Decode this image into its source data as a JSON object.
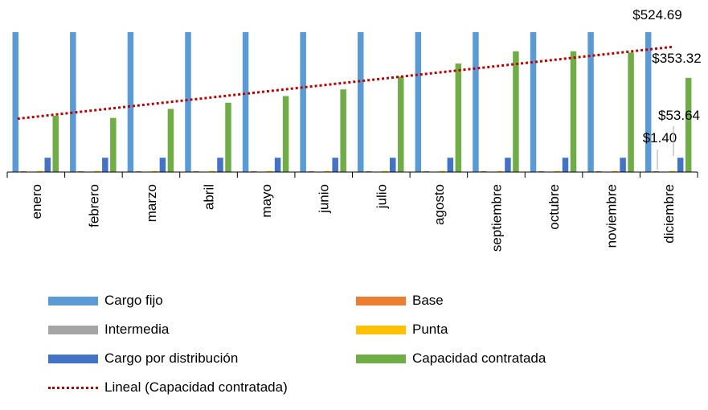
{
  "chart_data": {
    "type": "bar",
    "categories": [
      "enero",
      "febrero",
      "marzo",
      "abril",
      "mayo",
      "junio",
      "julio",
      "agosto",
      "septiembre",
      "octubre",
      "noviembre",
      "diciembre"
    ],
    "ylim": [
      0,
      524.69
    ],
    "series": [
      {
        "name": "Cargo fijo",
        "color": "#5b9bd5",
        "values": [
          524.69,
          524.69,
          524.69,
          524.69,
          524.69,
          524.69,
          524.69,
          524.69,
          524.69,
          524.69,
          524.69,
          524.69
        ]
      },
      {
        "name": "Base",
        "color": "#ed7d31",
        "values": [
          3,
          3,
          3,
          3,
          3,
          3,
          3,
          3,
          3,
          3,
          3,
          3
        ]
      },
      {
        "name": "Intermedia",
        "color": "#a5a5a5",
        "values": [
          1.4,
          1.4,
          1.4,
          1.4,
          1.4,
          1.4,
          1.4,
          1.4,
          1.4,
          1.4,
          1.4,
          1.4
        ]
      },
      {
        "name": "Punta",
        "color": "#ffc000",
        "values": [
          4,
          4,
          4,
          4,
          4,
          4,
          4,
          4,
          4,
          4,
          4,
          4
        ]
      },
      {
        "name": "Cargo por distribución",
        "color": "#4472c4",
        "values": [
          53.64,
          53.64,
          53.64,
          53.64,
          53.64,
          53.64,
          53.64,
          53.64,
          53.64,
          53.64,
          53.64,
          53.64
        ]
      },
      {
        "name": "Capacidad contratada",
        "color": "#70ad47",
        "values": [
          211,
          203,
          237,
          260,
          285,
          310,
          358,
          407,
          453,
          453,
          448,
          353.32
        ]
      }
    ],
    "trendline": {
      "name": "Lineal (Capacidad contratada)",
      "color": "#c00000",
      "start": 200,
      "end": 470
    },
    "data_labels": [
      "$524.69",
      "$353.32",
      "$53.64",
      "$1.40"
    ]
  }
}
